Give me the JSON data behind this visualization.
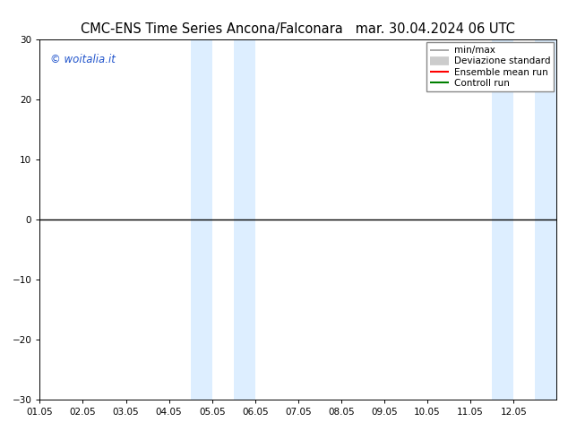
{
  "title_left": "CMC-ENS Time Series Ancona/Falconara",
  "title_right": "mar. 30.04.2024 06 UTC",
  "ylim": [
    -30,
    30
  ],
  "yticks": [
    -30,
    -20,
    -10,
    0,
    10,
    20,
    30
  ],
  "xlim": [
    0,
    12
  ],
  "x_tick_labels": [
    "01.05",
    "02.05",
    "03.05",
    "04.05",
    "05.05",
    "06.05",
    "07.05",
    "08.05",
    "09.05",
    "10.05",
    "11.05",
    "12.05"
  ],
  "x_tick_positions": [
    0,
    1,
    2,
    3,
    4,
    5,
    6,
    7,
    8,
    9,
    10,
    11
  ],
  "blue_bands": [
    {
      "start": 3.5,
      "end": 4.0
    },
    {
      "start": 4.5,
      "end": 5.0
    },
    {
      "start": 10.5,
      "end": 11.0
    },
    {
      "start": 11.5,
      "end": 12.0
    }
  ],
  "zero_line_color": "#000000",
  "band_color": "#ddeeff",
  "watermark": "© woitalia.it",
  "watermark_color": "#2255cc",
  "legend_items": [
    {
      "label": "min/max",
      "color": "#999999",
      "lw": 1.2
    },
    {
      "label": "Deviazione standard",
      "color": "#cccccc",
      "lw": 7
    },
    {
      "label": "Ensemble mean run",
      "color": "#ff0000",
      "lw": 1.5
    },
    {
      "label": "Controll run",
      "color": "#008000",
      "lw": 1.5
    }
  ],
  "title_fontsize": 10.5,
  "tick_fontsize": 7.5,
  "legend_fontsize": 7.5,
  "watermark_fontsize": 8.5,
  "figsize": [
    6.34,
    4.9
  ],
  "dpi": 100
}
